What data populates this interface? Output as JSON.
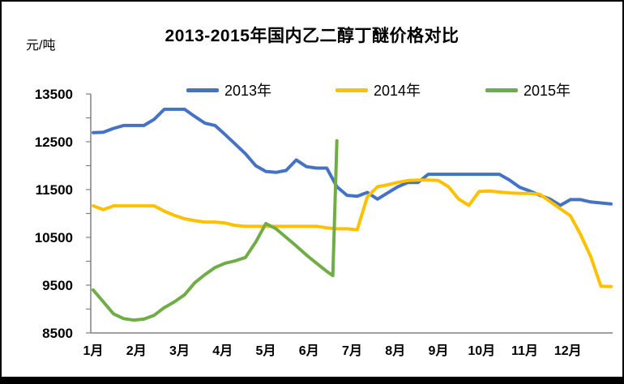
{
  "chart_data": {
    "type": "line",
    "title": "2013-2015年国内乙二醇丁醚价格对比",
    "unit": "元/吨",
    "grid": false,
    "legend": {
      "position": "top",
      "entries": [
        "2013年",
        "2014年",
        "2015年"
      ]
    },
    "x_axis": {
      "tick_labels": [
        "1月",
        "2月",
        "3月",
        "4月",
        "5月",
        "6月",
        "7月",
        "8月",
        "9月",
        "10月",
        "11月",
        "12月"
      ]
    },
    "y_axis": {
      "min": 8500,
      "max": 13500,
      "label_step": 1000,
      "minor_step": 500,
      "tick_labels": [
        "13500",
        "12500",
        "11500",
        "10500",
        "9500",
        "8500"
      ]
    },
    "axis_color": "#808080",
    "series": [
      {
        "name": "2013年",
        "color": "#4472C4",
        "values": [
          12690,
          12700,
          12780,
          12840,
          12840,
          12840,
          12970,
          13180,
          13180,
          13180,
          13030,
          12890,
          12840,
          12650,
          12450,
          12250,
          12000,
          11880,
          11860,
          11900,
          12120,
          11980,
          11950,
          11950,
          11560,
          11380,
          11360,
          11440,
          11300,
          11430,
          11560,
          11650,
          11650,
          11820,
          11820,
          11820,
          11820,
          11820,
          11820,
          11820,
          11820,
          11700,
          11550,
          11470,
          11380,
          11300,
          11170,
          11290,
          11290,
          11240,
          11220,
          11200
        ]
      },
      {
        "name": "2014年",
        "color": "#FFC000",
        "values": [
          11160,
          11080,
          11160,
          11160,
          11160,
          11160,
          11160,
          11050,
          10960,
          10890,
          10850,
          10820,
          10820,
          10800,
          10750,
          10730,
          10730,
          10730,
          10730,
          10730,
          10730,
          10730,
          10730,
          10700,
          10680,
          10680,
          10660,
          11350,
          11560,
          11600,
          11650,
          11690,
          11700,
          11700,
          11690,
          11560,
          11300,
          11170,
          11460,
          11470,
          11450,
          11430,
          11420,
          11420,
          11400,
          11250,
          11100,
          10950,
          10560,
          10100,
          9480,
          9470
        ]
      },
      {
        "name": "2015年",
        "color": "#70AD47",
        "x_weeks": [
          0,
          1,
          2,
          3,
          4,
          5,
          6,
          7,
          8,
          9,
          10,
          11,
          12,
          13,
          14,
          15,
          16,
          17,
          18,
          19,
          20,
          21,
          22,
          23,
          23.6,
          24
        ],
        "values": [
          9400,
          9150,
          8900,
          8800,
          8770,
          8790,
          8870,
          9030,
          9150,
          9300,
          9550,
          9720,
          9870,
          9960,
          10010,
          10080,
          10400,
          10790,
          10680,
          10500,
          10320,
          10130,
          9960,
          9790,
          9700,
          12520
        ]
      }
    ]
  }
}
